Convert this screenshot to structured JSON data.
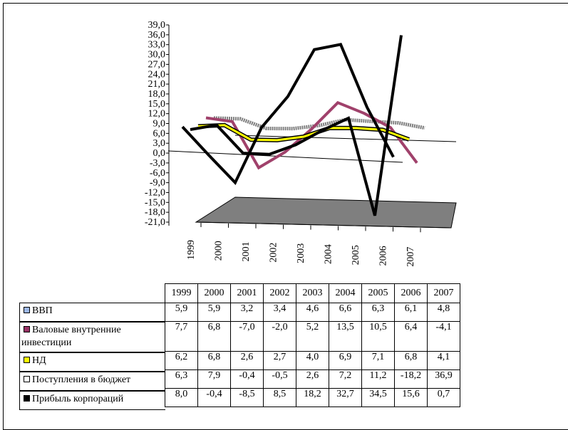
{
  "chart_data": {
    "type": "line",
    "categories": [
      "1999",
      "2000",
      "2001",
      "2002",
      "2003",
      "2004",
      "2005",
      "2006",
      "2007"
    ],
    "y_ticks": [
      "39,0",
      "36,0",
      "33,0",
      "30,0",
      "27,0",
      "24,0",
      "21,0",
      "18,0",
      "15,0",
      "12,0",
      "9,0",
      "6,0",
      "3,0",
      "0,0",
      "-3,0",
      "-6,0",
      "-9,0",
      "-12,0",
      "-15,0",
      "-18,0",
      "-21,0"
    ],
    "ylim": [
      -21,
      39
    ],
    "grid": false,
    "legend": "table below chart",
    "series": [
      {
        "name": "ВВП",
        "values": [
          5.9,
          5.9,
          3.2,
          3.4,
          4.6,
          6.6,
          6.3,
          6.1,
          4.8
        ],
        "color": "#7f7f7f",
        "swatch": "#9db8e8",
        "display": [
          "5,9",
          "5,9",
          "3,2",
          "3,4",
          "4,6",
          "6,6",
          "6,3",
          "6,1",
          "4,8"
        ]
      },
      {
        "name": "Валовые внутренние инвестиции",
        "values": [
          7.7,
          6.8,
          -7.0,
          -2.0,
          5.2,
          13.5,
          10.5,
          6.4,
          -4.1
        ],
        "color": "#a0416b",
        "swatch": "#993366",
        "display": [
          "7,7",
          "6,8",
          "-7,0",
          "-2,0",
          "5,2",
          "13,5",
          "10,5",
          "6,4",
          "-4,1"
        ]
      },
      {
        "name": "НД",
        "values": [
          6.2,
          6.8,
          2.6,
          2.7,
          4.0,
          6.9,
          7.1,
          6.8,
          4.1
        ],
        "color": "#ffff00",
        "swatch": "#ffff00",
        "display": [
          "6,2",
          "6,8",
          "2,6",
          "2,7",
          "4,0",
          "6,9",
          "7,1",
          "6,8",
          "4,1"
        ]
      },
      {
        "name": "Поступления в бюджет",
        "values": [
          6.3,
          7.9,
          -0.4,
          -0.5,
          2.6,
          7.2,
          11.2,
          -18.2,
          36.9
        ],
        "color": "#000000",
        "swatch": "#ffffff",
        "display": [
          "6,3",
          "7,9",
          "-0,4",
          "-0,5",
          "2,6",
          "7,2",
          "11,2",
          "-18,2",
          "36,9"
        ]
      },
      {
        "name": "Прибыль корпораций",
        "values": [
          8.0,
          -0.4,
          -8.5,
          8.5,
          18.2,
          32.7,
          34.5,
          15.6,
          0.7
        ],
        "color": "#000000",
        "swatch": "#000000",
        "display": [
          "8,0",
          "-0,4",
          "-8,5",
          "8,5",
          "18,2",
          "32,7",
          "34,5",
          "15,6",
          "0,7"
        ]
      }
    ]
  }
}
